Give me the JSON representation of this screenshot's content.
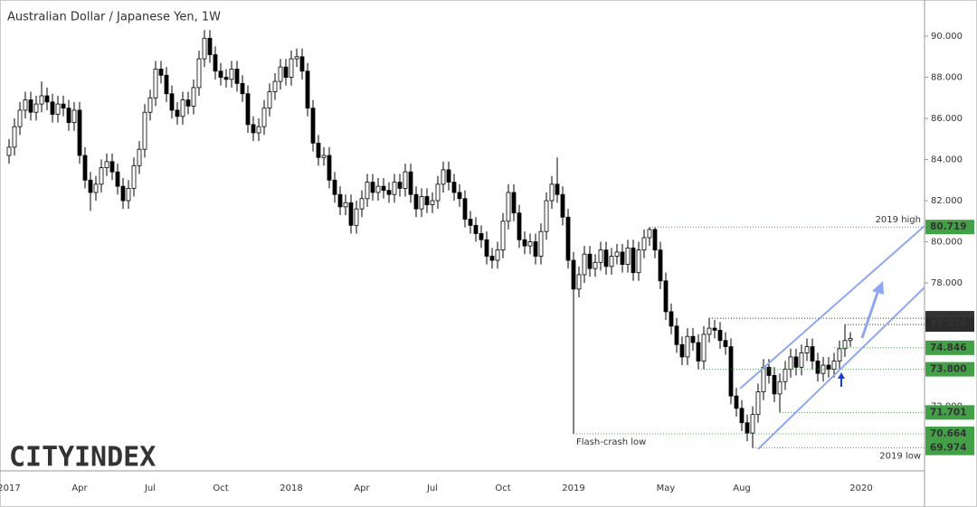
{
  "chart_data": {
    "type": "candlestick",
    "title": "Australian Dollar / Japanese Yen, 1W",
    "brand": {
      "city": "CITY",
      "index": "INDEX"
    },
    "up_color": "#ffffff",
    "down_color": "#000000",
    "categories": [
      "2017",
      null,
      null,
      null,
      null,
      null,
      null,
      null,
      null,
      null,
      null,
      null,
      null,
      "Apr",
      null,
      null,
      null,
      null,
      null,
      null,
      null,
      null,
      null,
      null,
      null,
      null,
      "Jul",
      null,
      null,
      null,
      null,
      null,
      null,
      null,
      null,
      null,
      null,
      null,
      null,
      "Oct",
      null,
      null,
      null,
      null,
      null,
      null,
      null,
      null,
      null,
      null,
      null,
      null,
      "2018",
      null,
      null,
      null,
      null,
      null,
      null,
      null,
      null,
      null,
      null,
      null,
      null,
      "Apr",
      null,
      null,
      null,
      null,
      null,
      null,
      null,
      null,
      null,
      null,
      null,
      null,
      "Jul",
      null,
      null,
      null,
      null,
      null,
      null,
      null,
      null,
      null,
      null,
      null,
      null,
      "Oct",
      null,
      null,
      null,
      null,
      null,
      null,
      null,
      null,
      null,
      null,
      null,
      null,
      "2019",
      null,
      null,
      null,
      null,
      null,
      null,
      null,
      null,
      null,
      null,
      null,
      null,
      null,
      null,
      null,
      null,
      "May",
      null,
      null,
      null,
      null,
      null,
      null,
      null,
      null,
      null,
      null,
      null,
      null,
      null,
      "Aug",
      null,
      null,
      null,
      null,
      null,
      null,
      null,
      null,
      null,
      null,
      null,
      null,
      null,
      null,
      null,
      null,
      null,
      null,
      null,
      null,
      null,
      "2020",
      null,
      null,
      null,
      null,
      null,
      null,
      null,
      null,
      null,
      null,
      null
    ],
    "open": [
      84.2,
      84.6,
      85.6,
      86.4,
      86.9,
      86.3,
      86.7,
      87.1,
      86.8,
      86.2,
      86.7,
      86.5,
      85.8,
      86.4,
      84.2,
      83.0,
      82.4,
      82.8,
      83.6,
      83.9,
      83.4,
      82.7,
      82.0,
      82.6,
      83.7,
      84.5,
      86.3,
      87.0,
      88.4,
      88.1,
      87.2,
      86.4,
      86.1,
      86.9,
      86.6,
      87.5,
      88.9,
      89.9,
      89.1,
      88.3,
      88.0,
      87.9,
      88.4,
      87.7,
      87.2,
      85.7,
      85.3,
      85.6,
      86.5,
      87.3,
      87.8,
      88.5,
      88.0,
      88.9,
      89.0,
      88.3,
      86.5,
      84.8,
      84.1,
      84.2,
      83.0,
      82.3,
      81.7,
      81.9,
      80.8,
      81.6,
      82.1,
      82.9,
      82.4,
      82.7,
      82.5,
      82.3,
      82.9,
      82.6,
      83.4,
      82.3,
      81.6,
      82.2,
      81.8,
      82.0,
      82.8,
      83.5,
      82.9,
      82.4,
      82.1,
      81.1,
      80.8,
      80.4,
      80.1,
      79.3,
      79.1,
      79.6,
      81.0,
      82.4,
      81.4,
      80.1,
      79.8,
      80.0,
      79.3,
      80.5,
      82.0,
      82.8,
      82.3,
      81.2,
      79.1,
      77.7,
      78.4,
      79.4,
      78.7,
      79.0,
      79.6,
      78.8,
      79.3,
      79.5,
      78.9,
      79.7,
      78.5,
      79.6,
      80.2,
      80.6,
      79.6,
      78.1,
      76.6,
      75.9,
      75.0,
      74.4,
      75.4,
      75.1,
      74.2,
      75.5,
      75.8,
      75.7,
      75.2,
      74.9,
      72.5,
      71.9,
      71.2,
      70.7,
      71.6,
      72.7,
      73.9,
      73.5,
      72.6,
      73.2,
      73.8,
      74.4,
      73.9,
      74.6,
      74.9,
      74.2,
      73.6,
      74.0,
      73.8,
      74.2,
      74.8,
      75.2,
      null,
      null,
      null,
      null,
      null,
      null,
      null,
      null,
      null,
      null,
      null,
      null,
      null
    ],
    "high": [
      85.0,
      86.0,
      86.8,
      87.3,
      87.3,
      87.1,
      87.8,
      87.5,
      87.2,
      87.1,
      87.1,
      86.9,
      86.8,
      86.8,
      84.6,
      83.4,
      83.2,
      84.0,
      84.3,
      84.3,
      83.8,
      83.1,
      83.0,
      84.1,
      84.9,
      86.7,
      87.4,
      88.8,
      88.8,
      88.5,
      87.6,
      86.8,
      87.3,
      87.3,
      87.9,
      89.3,
      90.3,
      90.3,
      89.5,
      88.7,
      88.4,
      88.8,
      88.8,
      88.1,
      87.6,
      86.1,
      86.0,
      86.9,
      87.7,
      88.2,
      88.9,
      88.9,
      89.3,
      89.4,
      89.4,
      88.7,
      86.9,
      85.2,
      84.6,
      84.6,
      83.4,
      82.7,
      82.3,
      82.3,
      82.0,
      82.5,
      83.3,
      83.3,
      83.1,
      83.1,
      82.9,
      83.3,
      83.3,
      83.8,
      83.8,
      82.7,
      82.6,
      82.6,
      82.4,
      83.2,
      83.9,
      83.9,
      83.3,
      82.8,
      82.5,
      81.5,
      81.2,
      80.8,
      80.5,
      79.7,
      80.0,
      81.4,
      82.8,
      82.8,
      81.8,
      80.5,
      80.4,
      80.4,
      80.9,
      82.4,
      83.2,
      84.1,
      82.7,
      81.6,
      79.5,
      78.8,
      79.8,
      79.8,
      79.4,
      80.0,
      80.0,
      79.7,
      79.9,
      79.9,
      80.1,
      80.1,
      80.0,
      80.6,
      80.719,
      80.7,
      80.0,
      78.5,
      77.0,
      76.3,
      75.4,
      75.8,
      75.8,
      75.5,
      75.9,
      76.285,
      76.2,
      76.1,
      75.6,
      75.3,
      72.9,
      72.3,
      71.6,
      72.0,
      73.1,
      74.3,
      74.3,
      73.9,
      73.6,
      74.2,
      74.8,
      74.8,
      75.0,
      75.3,
      75.3,
      74.6,
      74.4,
      74.4,
      74.6,
      75.2,
      75.976,
      75.6,
      null,
      null,
      null,
      null,
      null,
      null,
      null,
      null,
      null,
      null,
      null,
      null,
      null
    ],
    "low": [
      83.8,
      84.2,
      85.2,
      86.0,
      85.9,
      85.9,
      86.3,
      86.4,
      85.8,
      85.8,
      86.1,
      85.4,
      85.4,
      83.8,
      82.6,
      81.5,
      82.0,
      82.4,
      83.2,
      83.0,
      82.3,
      81.6,
      81.6,
      82.2,
      83.3,
      84.1,
      85.9,
      86.6,
      87.7,
      86.8,
      86.0,
      85.7,
      85.7,
      86.2,
      86.2,
      87.1,
      88.5,
      88.7,
      87.9,
      87.6,
      87.5,
      87.5,
      87.3,
      86.8,
      85.3,
      84.9,
      84.9,
      85.2,
      86.1,
      86.9,
      87.4,
      87.6,
      87.6,
      88.5,
      87.9,
      86.1,
      84.4,
      83.7,
      83.7,
      82.6,
      81.9,
      81.3,
      81.3,
      80.4,
      80.4,
      81.2,
      81.7,
      82.0,
      82.0,
      82.1,
      81.9,
      81.9,
      82.2,
      82.2,
      81.9,
      81.2,
      81.2,
      81.4,
      81.4,
      81.6,
      82.4,
      82.5,
      82.0,
      81.7,
      80.7,
      80.4,
      80.0,
      79.7,
      78.9,
      78.7,
      78.7,
      79.2,
      80.6,
      81.0,
      79.7,
      79.4,
      79.4,
      78.9,
      78.9,
      80.1,
      81.6,
      81.9,
      80.8,
      78.7,
      70.664,
      77.3,
      78.0,
      78.3,
      78.3,
      78.6,
      78.4,
      78.4,
      78.9,
      78.5,
      78.5,
      78.1,
      78.1,
      79.2,
      79.8,
      79.2,
      77.7,
      76.2,
      75.5,
      74.6,
      74.0,
      74.0,
      74.7,
      73.8,
      73.8,
      75.1,
      75.3,
      74.8,
      74.5,
      72.1,
      71.5,
      70.8,
      70.3,
      69.974,
      71.2,
      72.3,
      73.1,
      72.2,
      71.701,
      72.8,
      73.4,
      73.5,
      73.5,
      74.2,
      73.8,
      73.2,
      73.2,
      73.4,
      73.4,
      73.8,
      74.4,
      74.9,
      null,
      null,
      null,
      null,
      null,
      null,
      null,
      null,
      null,
      null,
      null,
      null,
      null
    ],
    "close": [
      84.6,
      85.6,
      86.4,
      86.9,
      86.3,
      86.7,
      87.1,
      86.8,
      86.2,
      86.7,
      86.5,
      85.8,
      86.4,
      84.2,
      83.0,
      82.4,
      82.8,
      83.6,
      83.9,
      83.4,
      82.7,
      82.0,
      82.6,
      83.7,
      84.5,
      86.3,
      87.0,
      88.4,
      88.1,
      87.2,
      86.4,
      86.1,
      86.9,
      86.6,
      87.5,
      88.9,
      89.9,
      89.1,
      88.3,
      88.0,
      87.9,
      88.4,
      87.7,
      87.2,
      85.7,
      85.3,
      85.6,
      86.5,
      87.3,
      87.8,
      88.5,
      88.0,
      88.9,
      89.0,
      88.3,
      86.5,
      84.8,
      84.1,
      84.2,
      83.0,
      82.3,
      81.7,
      81.9,
      80.8,
      81.6,
      82.1,
      82.9,
      82.4,
      82.7,
      82.5,
      82.3,
      82.9,
      82.6,
      83.4,
      82.3,
      81.6,
      82.2,
      81.8,
      82.0,
      82.8,
      83.5,
      82.9,
      82.4,
      82.1,
      81.1,
      80.8,
      80.4,
      80.1,
      79.3,
      79.1,
      79.6,
      81.0,
      82.4,
      81.4,
      80.1,
      79.8,
      80.0,
      79.3,
      80.5,
      82.0,
      82.8,
      82.3,
      81.2,
      79.1,
      77.7,
      78.4,
      79.4,
      78.7,
      79.0,
      79.6,
      78.8,
      79.3,
      79.5,
      78.9,
      79.7,
      78.5,
      79.6,
      80.2,
      80.6,
      79.6,
      78.1,
      76.6,
      75.9,
      75.0,
      74.4,
      75.4,
      75.1,
      74.2,
      75.5,
      75.8,
      75.7,
      75.2,
      74.9,
      72.5,
      71.9,
      71.2,
      70.7,
      71.6,
      72.7,
      73.9,
      73.5,
      72.6,
      73.2,
      73.8,
      74.4,
      73.9,
      74.6,
      74.9,
      74.2,
      73.6,
      74.0,
      73.8,
      74.2,
      74.8,
      75.2,
      75.3,
      null,
      null,
      null,
      null,
      null,
      null,
      null,
      null,
      null,
      null,
      null,
      null,
      null
    ],
    "ylim": [
      68.86,
      91.54
    ],
    "yticks": [
      {
        "value": 72,
        "label": "72.000"
      },
      {
        "value": 78,
        "label": "78.000"
      },
      {
        "value": 80,
        "label": "80.000"
      },
      {
        "value": 82,
        "label": "82.000"
      },
      {
        "value": 84,
        "label": "84.000"
      },
      {
        "value": 86,
        "label": "86.000"
      },
      {
        "value": 88,
        "label": "88.000"
      },
      {
        "value": 90,
        "label": "90.000"
      }
    ],
    "levels": [
      {
        "value": 80.719,
        "label": "80.719",
        "text": "2019 high",
        "color": "#43a047"
      },
      {
        "value": 76.285,
        "label": "76.285",
        "color": "#333333"
      },
      {
        "value": 75.976,
        "label": "75.976",
        "color": "#2b2b2b"
      },
      {
        "value": 74.846,
        "label": "74.846",
        "color": "#43a047"
      },
      {
        "value": 73.8,
        "label": "73.800",
        "color": "#43a047"
      },
      {
        "value": 71.701,
        "label": "71.701",
        "color": "#43a047"
      },
      {
        "value": 70.664,
        "label": "70.664",
        "text": "Flash-crash low",
        "color": "#43a047"
      },
      {
        "value": 69.974,
        "label": "69.974",
        "text": "2019 low",
        "color": "#43a047"
      }
    ]
  }
}
